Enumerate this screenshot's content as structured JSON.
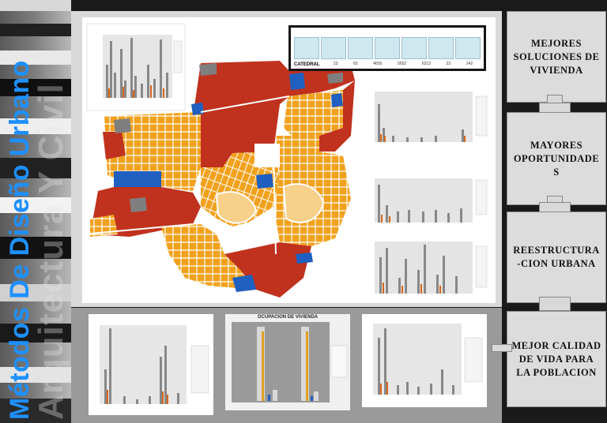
{
  "sidebar": {
    "title_main": "Métodos De Diseño Urbano",
    "title_back": "Arquitectura Y Civil"
  },
  "summary_table": {
    "row_label": "CATEDRAL",
    "values": [
      "23",
      "65",
      "4655",
      "5652",
      "6213",
      "23",
      "242"
    ]
  },
  "right_steps": [
    {
      "label_lines": [
        "MEJORES",
        "SOLUCIONES DE",
        "VIVIENDA"
      ]
    },
    {
      "label_lines": [
        "MAYORES",
        "OPORTUNIDADE",
        "S"
      ]
    },
    {
      "label_lines": [
        "REESTRUCTURA",
        "-CION URBANA"
      ]
    },
    {
      "label_lines": [
        "MEJOR CALIDAD",
        "DE VIDA PARA",
        "LA POBLACION"
      ]
    }
  ],
  "bottom_charts": [
    {
      "title": ""
    },
    {
      "title": "OCUPACION DE VIVIENDA"
    },
    {
      "title": ""
    }
  ],
  "colors": {
    "orange": "#f2a11d",
    "red": "#c0321e",
    "blue": "#1f5fbf",
    "gray": "#7f7f7f",
    "accent_blue": "#1e90ff"
  }
}
